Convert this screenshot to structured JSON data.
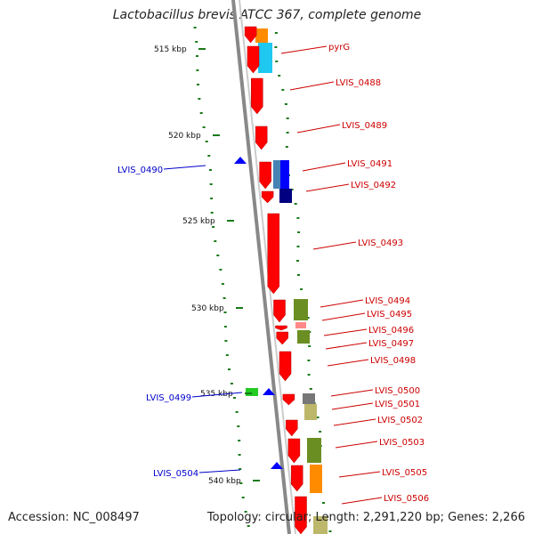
{
  "title": "Lactobacillus brevis ATCC 367, complete genome",
  "accession_text": "Accession: NC_008497",
  "summary_text": "Topology: circular; Length: 2,291,220 bp; Genes: 2,266",
  "ticks": [
    "515 kbp",
    "520 kbp",
    "525 kbp",
    "530 kbp",
    "535 kbp",
    "540 kbp"
  ],
  "forward_gene_labels": [
    "pyrG",
    "LVIS_0488",
    "LVIS_0489",
    "LVIS_0491",
    "LVIS_0492",
    "LVIS_0493",
    "LVIS_0494",
    "LVIS_0495",
    "LVIS_0496",
    "LVIS_0497",
    "LVIS_0498",
    "LVIS_0500",
    "LVIS_0501",
    "LVIS_0502",
    "LVIS_0503",
    "LVIS_0505",
    "LVIS_0506"
  ],
  "reverse_gene_labels": [
    "LVIS_0490",
    "LVIS_0499",
    "LVIS_0504"
  ],
  "colors": {
    "cds": "#ff0000",
    "forward_label": "#cc0000",
    "reverse_label": "#0000cc",
    "reverse_gene": "#0000ff",
    "backbone": "#888888",
    "gc_dots": "#1a7a1a",
    "cog_olive": "#6b8e23",
    "cog_cyan": "#1ec8f0",
    "cog_orange": "#ff8c00",
    "cog_navy": "#000080",
    "cog_steel": "#4682b4",
    "cog_khaki": "#bdb76b",
    "cog_gray": "#777777",
    "cog_green": "#22cc22",
    "cog_pink": "#ff8888"
  }
}
